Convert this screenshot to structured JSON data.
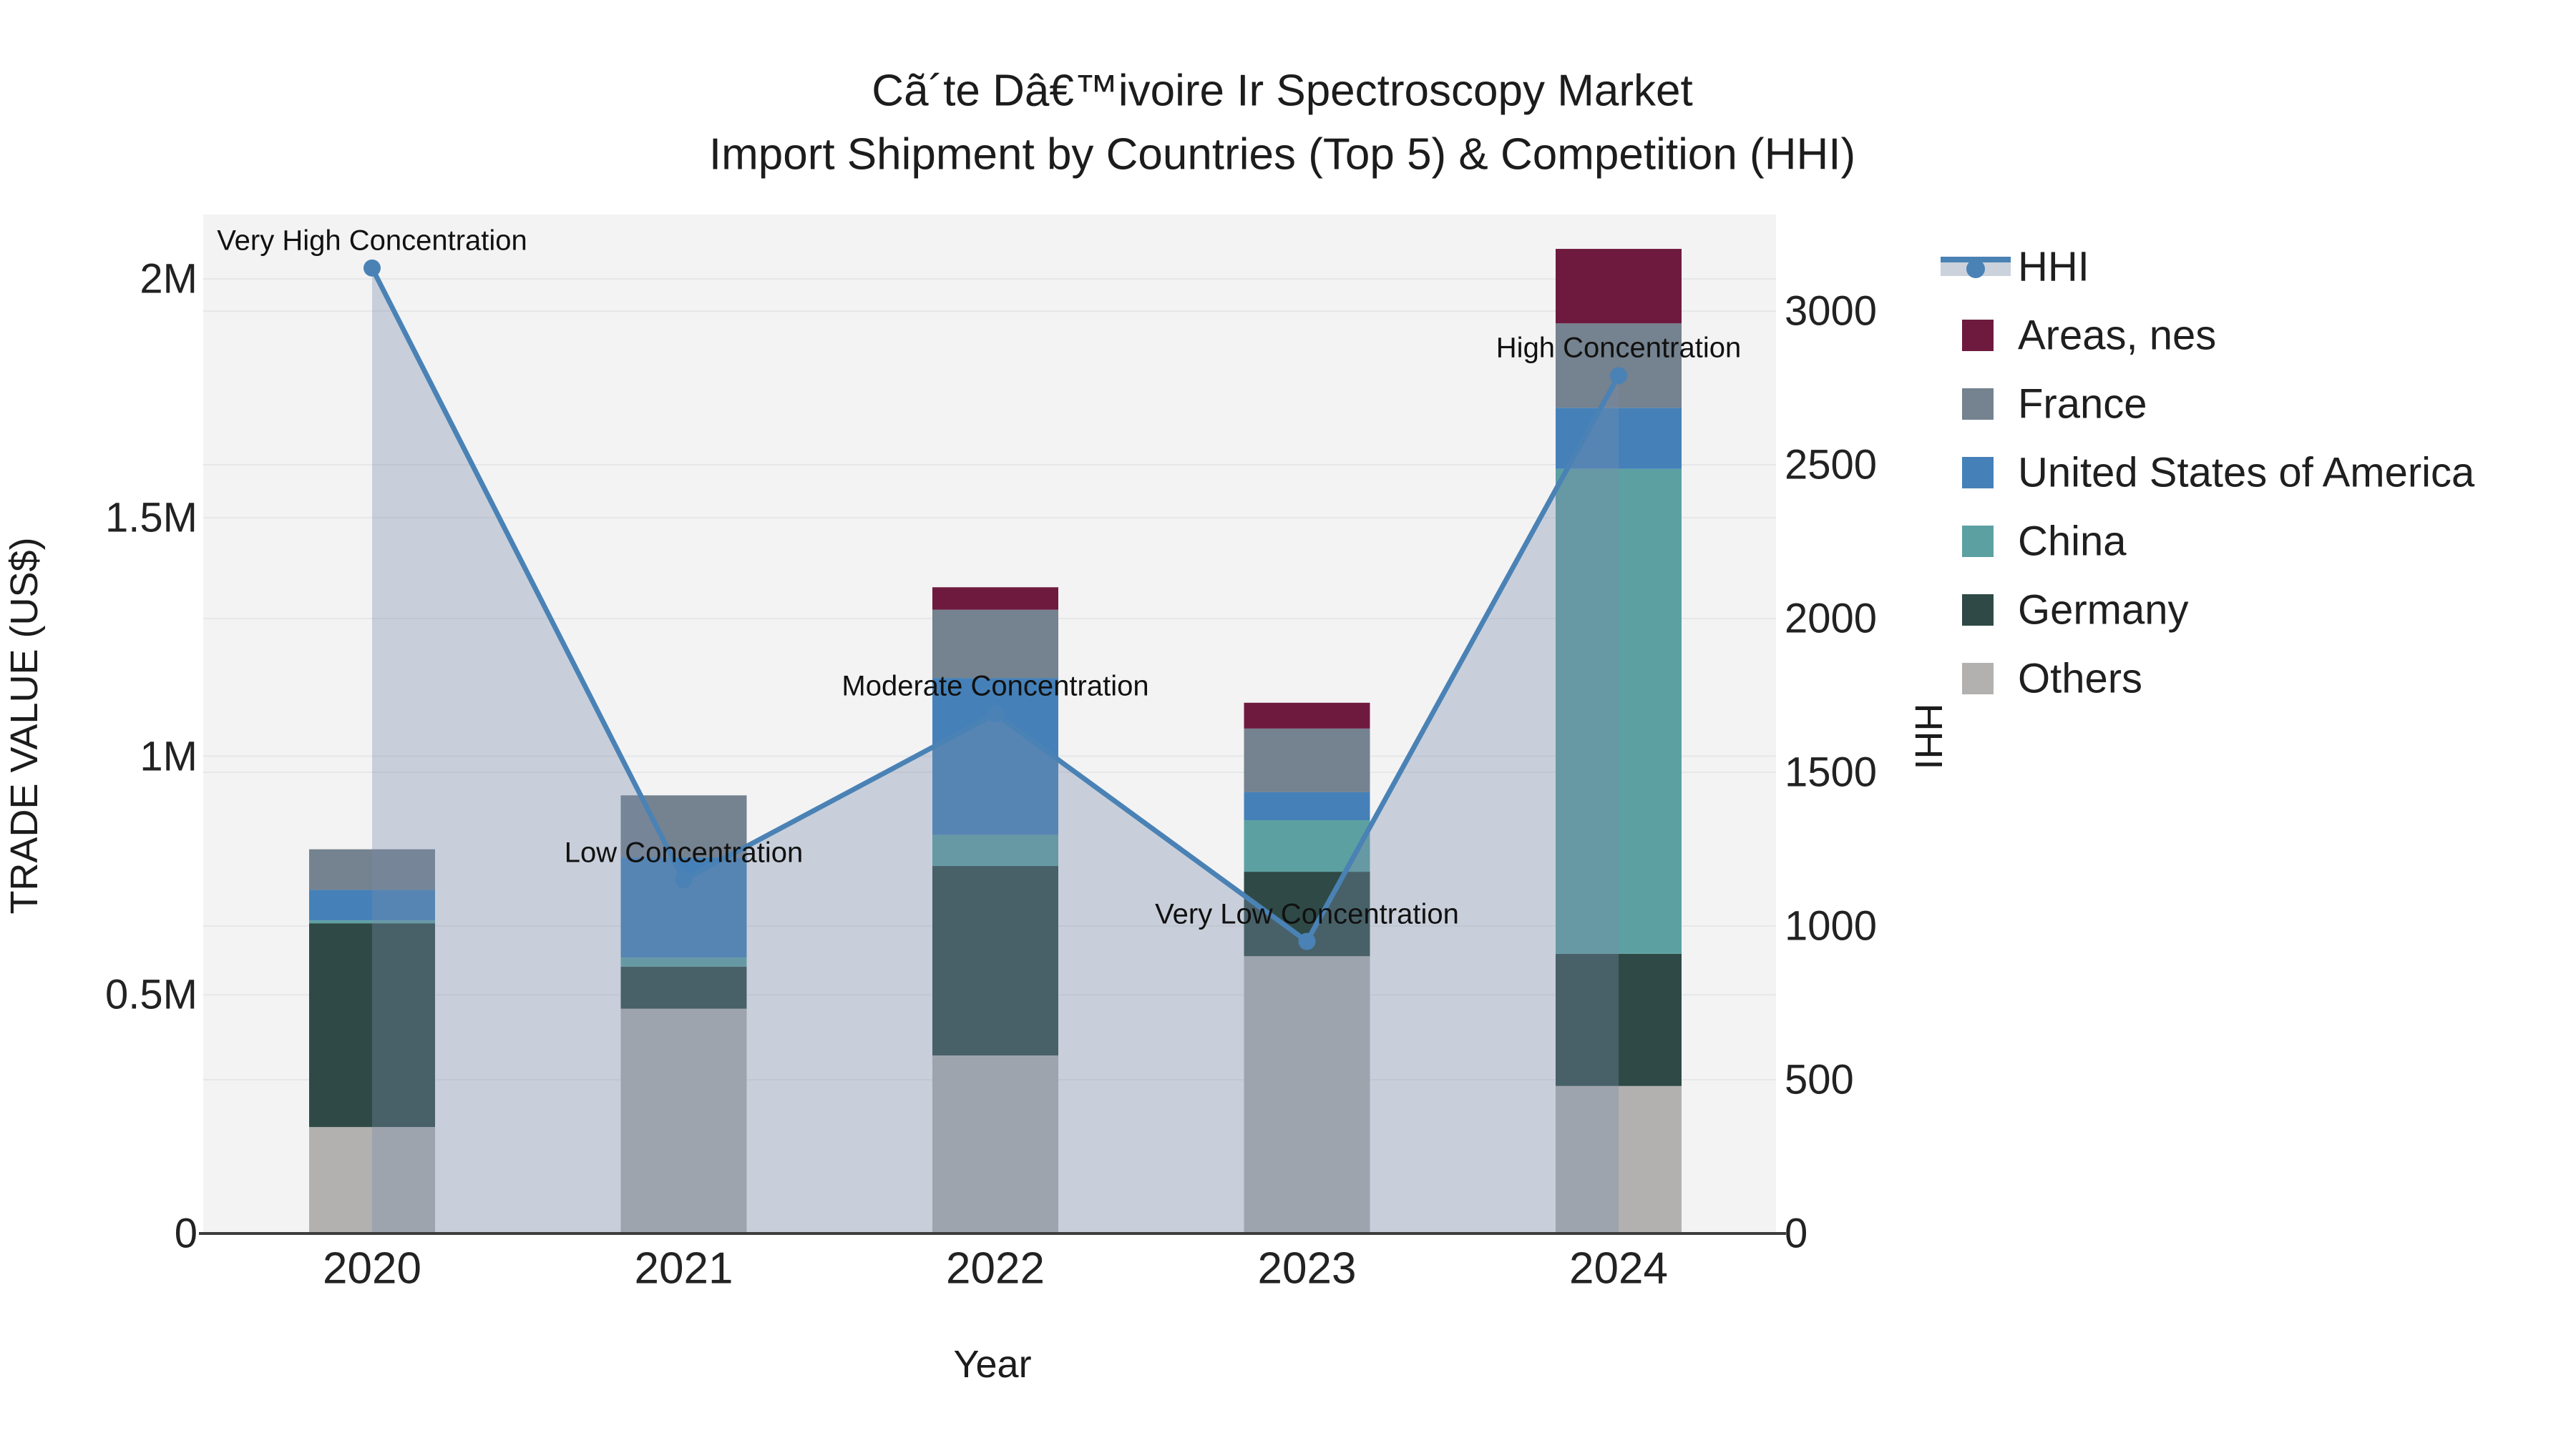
{
  "title": {
    "line1": "Cã´te Dâ€™ivoire Ir Spectroscopy Market",
    "line2": "Import Shipment by Countries (Top 5) & Competition (HHI)"
  },
  "axes": {
    "x": {
      "title": "Year",
      "categories": [
        "2020",
        "2021",
        "2022",
        "2023",
        "2024"
      ]
    },
    "y_left": {
      "title": "TRADE VALUE (US$)",
      "tick_labels": [
        "0",
        "0.5M",
        "1M",
        "1.5M",
        "2M"
      ],
      "tick_values": [
        0,
        500000,
        1000000,
        1500000,
        2000000
      ],
      "range": [
        0,
        2135000
      ]
    },
    "y_right": {
      "title": "HHI",
      "tick_labels": [
        "0",
        "500",
        "1000",
        "1500",
        "2000",
        "2500",
        "3000"
      ],
      "tick_values": [
        0,
        500,
        1000,
        1500,
        2000,
        2500,
        3000
      ],
      "range": [
        0,
        3314
      ]
    }
  },
  "legend": {
    "items": [
      {
        "label": "HHI",
        "type": "line",
        "color": "#4A82B5",
        "band_color": "#CBD2DC"
      },
      {
        "label": "Areas, nes",
        "type": "square",
        "color": "#6E1A3F"
      },
      {
        "label": "France",
        "type": "square",
        "color": "#75828F"
      },
      {
        "label": "United States of America",
        "type": "square",
        "color": "#4581B8"
      },
      {
        "label": "China",
        "type": "square",
        "color": "#5DA0A2"
      },
      {
        "label": "Germany",
        "type": "square",
        "color": "#2F4A46"
      },
      {
        "label": "Others",
        "type": "square",
        "color": "#B3B1B0"
      }
    ]
  },
  "chart_data": {
    "type": "bar+line",
    "title": "Cã´te Dâ€™ivoire Ir Spectroscopy Market — Import Shipment by Countries (Top 5) & Competition (HHI)",
    "xlabel": "Year",
    "ylabel_left": "TRADE VALUE (US$)",
    "ylabel_right": "HHI",
    "categories": [
      "2020",
      "2021",
      "2022",
      "2023",
      "2024"
    ],
    "stack_order_bottom_to_top": [
      "Others",
      "Germany",
      "China",
      "United States of America",
      "France",
      "Areas, nes"
    ],
    "series": [
      {
        "name": "Others",
        "color": "#B3B1B0",
        "values": [
          223000,
          471000,
          373000,
          581000,
          309000
        ]
      },
      {
        "name": "Germany",
        "color": "#2F4A46",
        "values": [
          427000,
          88000,
          397000,
          177000,
          277000
        ]
      },
      {
        "name": "China",
        "color": "#5DA0A2",
        "values": [
          6000,
          19000,
          65000,
          108000,
          1016000
        ]
      },
      {
        "name": "United States of America",
        "color": "#4581B8",
        "values": [
          64000,
          210000,
          329000,
          59000,
          128000
        ]
      },
      {
        "name": "France",
        "color": "#75828F",
        "values": [
          85000,
          130000,
          143000,
          133000,
          177000
        ]
      },
      {
        "name": "Areas, nes",
        "color": "#6E1A3F",
        "values": [
          0,
          0,
          47000,
          54000,
          156000
        ]
      }
    ],
    "bar_totals": [
      805000,
      918000,
      1354000,
      1112000,
      2063000
    ],
    "line_series": {
      "name": "HHI",
      "axis": "right",
      "color": "#4A82B5",
      "fill_color": "rgba(120,140,170,0.35)",
      "values": [
        3140,
        1150,
        1690,
        950,
        2790
      ]
    },
    "annotations": [
      {
        "text": "Very High Concentration",
        "category": "2020",
        "hhi": 3140
      },
      {
        "text": "Low Concentration",
        "category": "2021",
        "hhi": 1150
      },
      {
        "text": "Moderate Concentration",
        "category": "2022",
        "hhi": 1690
      },
      {
        "text": "Very Low Concentration",
        "category": "2023",
        "hhi": 950
      },
      {
        "text": "High Concentration",
        "category": "2024",
        "hhi": 2790
      }
    ],
    "grid": true,
    "legend_position": "right",
    "colors": {
      "plot_background": "#F3F3F4",
      "figure_background": "#FFFFFF",
      "gridline": "#E6E7E9",
      "axis_line": "#3D3D3D",
      "text": "#1C1C1C"
    }
  }
}
